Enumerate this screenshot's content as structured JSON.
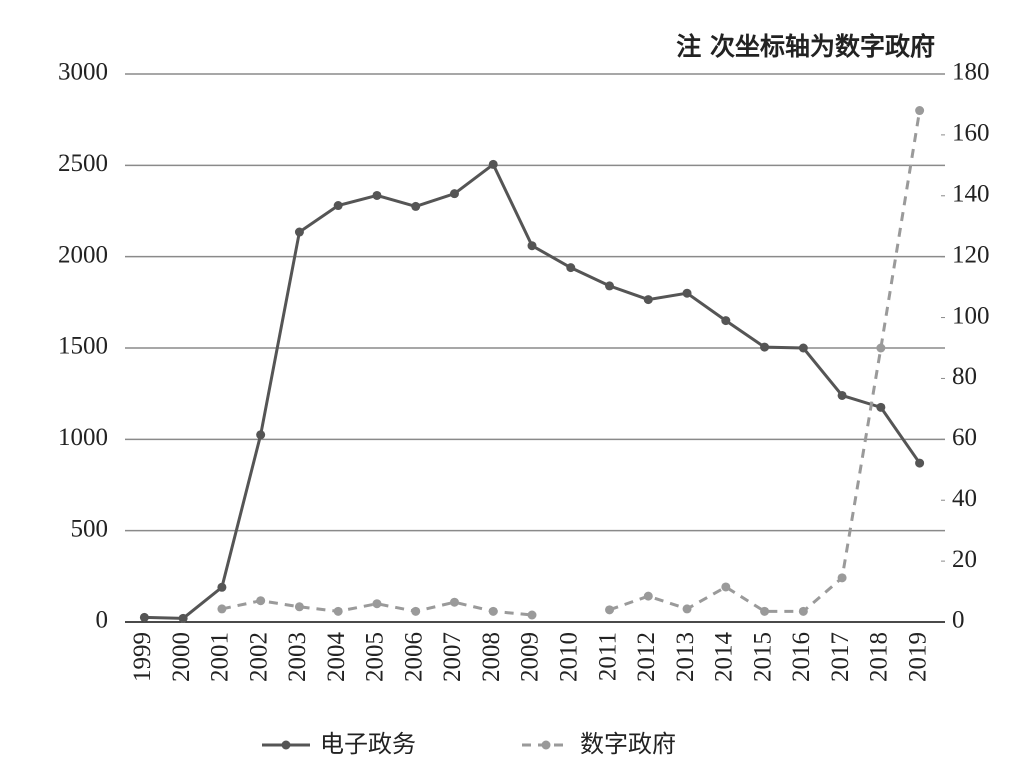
{
  "chart_data": {
    "type": "line",
    "annotation": "注 次坐标轴为数字政府",
    "categories": [
      "1999",
      "2000",
      "2001",
      "2002",
      "2003",
      "2004",
      "2005",
      "2006",
      "2007",
      "2008",
      "2009",
      "2010",
      "2011",
      "2012",
      "2013",
      "2014",
      "2015",
      "2016",
      "2017",
      "2018",
      "2019"
    ],
    "series": [
      {
        "name": "电子政务",
        "color": "#555555",
        "values": [
          25,
          20,
          190,
          1025,
          2135,
          2280,
          2335,
          2275,
          2345,
          2505,
          2060,
          1940,
          1840,
          1765,
          1800,
          1650,
          1505,
          1500,
          1240,
          1175,
          870
        ]
      },
      {
        "name": "数字政府",
        "color": "#9a9a9a",
        "axis": "y2",
        "values": [
          null,
          null,
          4.3,
          7,
          5,
          3.5,
          6,
          3.5,
          6.5,
          3.5,
          2.3,
          null,
          4,
          8.5,
          4.3,
          11.5,
          3.5,
          3.5,
          14.5,
          90,
          168
        ]
      }
    ],
    "ylim": [
      0,
      3000
    ],
    "yticks": [
      0,
      500,
      1000,
      1500,
      2000,
      2500,
      3000
    ],
    "y2lim": [
      0,
      180
    ],
    "y2ticks": [
      0,
      20,
      40,
      60,
      80,
      100,
      120,
      140,
      160,
      180
    ],
    "grid": true,
    "legend": "bottom"
  }
}
